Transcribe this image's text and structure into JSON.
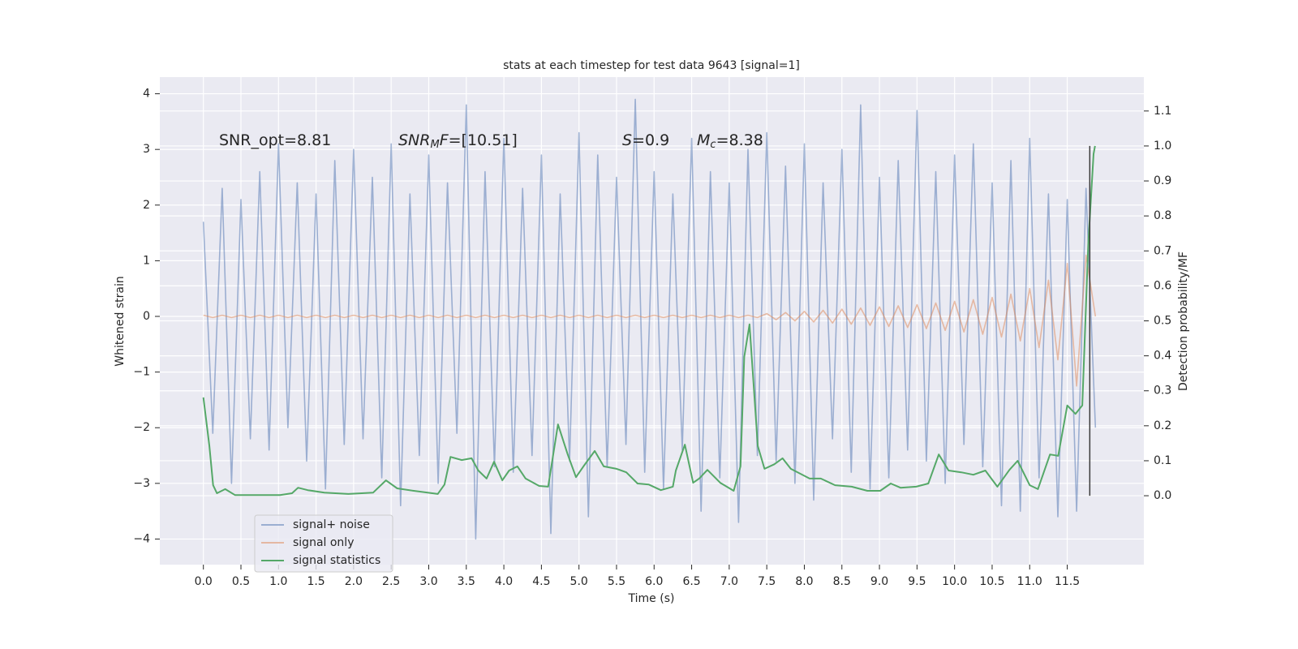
{
  "chart_data": {
    "type": "line",
    "title": "stats at each timestep for test data 9643 [signal=1]",
    "xlabel": "Time (s)",
    "ylabel": "Whitened strain",
    "y2label": "Detection probability/MF",
    "annotations": [
      [
        "SNR_opt=8.81"
      ],
      [
        "SNR",
        "M",
        "F",
        "=[10.51]"
      ],
      [
        "S",
        "=0.9"
      ],
      [
        "M",
        "c",
        "=8.38"
      ]
    ],
    "grid": true,
    "legend": "lower left",
    "xlim": [
      -0.58,
      12.52
    ],
    "xticks": [
      {
        "value": 0,
        "label": "0.0"
      },
      0.5,
      {
        "value": 1,
        "label": "1.0"
      },
      1.5,
      {
        "value": 2,
        "label": "2.0"
      },
      2.5,
      {
        "value": 3,
        "label": "3.0"
      },
      3.5,
      {
        "value": 4,
        "label": "4.0"
      },
      4.5,
      {
        "value": 5,
        "label": "5.0"
      },
      5.5,
      {
        "value": 6,
        "label": "6.0"
      },
      6.5,
      {
        "value": 7,
        "label": "7.0"
      },
      7.5,
      {
        "value": 8,
        "label": "8.0"
      },
      8.5,
      {
        "value": 9,
        "label": "9.0"
      },
      9.5,
      {
        "value": 10,
        "label": "10.0"
      },
      10.5,
      {
        "value": 11,
        "label": "11.0"
      },
      11.5
    ],
    "ylim": [
      -4.46,
      4.3
    ],
    "yticks": [
      {
        "value": -4,
        "label": "−4"
      },
      {
        "value": -3,
        "label": "−3"
      },
      {
        "value": -2,
        "label": "−2"
      },
      {
        "value": -1,
        "label": "−1"
      },
      0,
      1,
      2,
      3,
      4
    ],
    "y2lim": [
      -0.197,
      1.197
    ],
    "y2ticks": [
      {
        "value": 0,
        "label": "0.0"
      },
      0.1,
      0.2,
      0.3,
      0.4,
      0.5,
      0.6,
      0.7,
      0.8,
      0.9,
      {
        "value": 1,
        "label": "1.0"
      },
      1.1
    ],
    "x": [
      0,
      0.125,
      0.25,
      0.375,
      0.5,
      0.625,
      0.75,
      0.875,
      1,
      1.125,
      1.25,
      1.375,
      1.5,
      1.625,
      1.75,
      1.875,
      2,
      2.125,
      2.25,
      2.375,
      2.5,
      2.625,
      2.75,
      2.875,
      3,
      3.125,
      3.25,
      3.375,
      3.5,
      3.625,
      3.75,
      3.875,
      4,
      4.125,
      4.25,
      4.375,
      4.5,
      4.625,
      4.75,
      4.875,
      5,
      5.125,
      5.25,
      5.375,
      5.5,
      5.625,
      5.75,
      5.875,
      6,
      6.125,
      6.25,
      6.375,
      6.5,
      6.625,
      6.75,
      6.875,
      7,
      7.125,
      7.25,
      7.375,
      7.5,
      7.625,
      7.75,
      7.875,
      8,
      8.125,
      8.25,
      8.375,
      8.5,
      8.625,
      8.75,
      8.875,
      9,
      9.125,
      9.25,
      9.375,
      9.5,
      9.625,
      9.75,
      9.875,
      10,
      10.125,
      10.25,
      10.375,
      10.5,
      10.625,
      10.75,
      10.875,
      11,
      11.125,
      11.25,
      11.375,
      11.5,
      11.625,
      11.75,
      11.875
    ],
    "series": [
      {
        "name": "signal+ noise",
        "color": "#4c72b0",
        "alpha": 0.5,
        "values": [
          1.7,
          -2.1,
          2.3,
          -3.0,
          2.1,
          -2.2,
          2.6,
          -2.4,
          3.1,
          -2.0,
          2.4,
          -2.6,
          2.2,
          -3.1,
          2.8,
          -2.3,
          3.0,
          -2.2,
          2.5,
          -2.9,
          3.1,
          -3.4,
          2.2,
          -2.5,
          2.9,
          -3.0,
          2.4,
          -2.1,
          3.8,
          -4.0,
          2.6,
          -2.7,
          3.2,
          -2.8,
          2.3,
          -2.5,
          2.9,
          -3.9,
          2.2,
          -2.6,
          3.3,
          -3.6,
          2.9,
          -2.7,
          2.5,
          -2.3,
          3.9,
          -2.8,
          2.6,
          -3.1,
          2.2,
          -2.4,
          3.2,
          -3.5,
          2.6,
          -2.9,
          2.4,
          -3.7,
          3.0,
          -2.5,
          3.3,
          -2.6,
          2.7,
          -3.0,
          3.1,
          -3.3,
          2.4,
          -2.2,
          3.0,
          -2.8,
          3.8,
          -3.1,
          2.5,
          -2.9,
          2.8,
          -2.4,
          3.7,
          -2.6,
          2.6,
          -3.0,
          2.9,
          -2.3,
          3.1,
          -2.7,
          2.4,
          -3.4,
          2.8,
          -3.5,
          3.2,
          -2.9,
          2.2,
          -3.6,
          2.1,
          -3.5,
          2.3,
          -2.0
        ]
      },
      {
        "name": "signal only",
        "color": "#dd8452",
        "alpha": 0.5,
        "values": [
          0.02,
          -0.02,
          0.02,
          -0.02,
          0.02,
          -0.02,
          0.02,
          -0.02,
          0.02,
          -0.02,
          0.02,
          -0.02,
          0.02,
          -0.02,
          0.02,
          -0.02,
          0.02,
          -0.02,
          0.02,
          -0.02,
          0.02,
          -0.02,
          0.02,
          -0.02,
          0.02,
          -0.02,
          0.02,
          -0.02,
          0.02,
          -0.02,
          0.02,
          -0.02,
          0.02,
          -0.02,
          0.02,
          -0.02,
          0.02,
          -0.02,
          0.02,
          -0.02,
          0.02,
          -0.02,
          0.02,
          -0.02,
          0.02,
          -0.02,
          0.02,
          -0.02,
          0.02,
          -0.02,
          0.02,
          -0.02,
          0.02,
          -0.02,
          0.02,
          -0.02,
          0.02,
          -0.02,
          0.02,
          -0.02,
          0.05,
          -0.06,
          0.07,
          -0.08,
          0.09,
          -0.1,
          0.11,
          -0.12,
          0.13,
          -0.14,
          0.15,
          -0.16,
          0.17,
          -0.18,
          0.19,
          -0.2,
          0.21,
          -0.22,
          0.24,
          -0.25,
          0.27,
          -0.28,
          0.3,
          -0.32,
          0.34,
          -0.37,
          0.4,
          -0.44,
          0.5,
          -0.56,
          0.65,
          -0.78,
          0.95,
          -1.25,
          1.1,
          0
        ]
      },
      {
        "name": "signal statistics",
        "color": "#55a868",
        "axis": "y2",
        "x": [
          0,
          0.08,
          0.13,
          0.18,
          0.29,
          0.42,
          0.75,
          1.02,
          1.18,
          1.26,
          1.39,
          1.61,
          1.93,
          2.26,
          2.43,
          2.58,
          2.8,
          3.12,
          3.21,
          3.29,
          3.44,
          3.57,
          3.66,
          3.77,
          3.87,
          3.98,
          4.07,
          4.18,
          4.29,
          4.47,
          4.59,
          4.72,
          4.85,
          4.96,
          5.06,
          5.21,
          5.33,
          5.5,
          5.63,
          5.78,
          5.93,
          6.09,
          6.25,
          6.29,
          6.41,
          6.52,
          6.6,
          6.71,
          6.88,
          7.06,
          7.15,
          7.2,
          7.27,
          7.38,
          7.47,
          7.6,
          7.71,
          7.82,
          8.07,
          8.22,
          8.41,
          8.63,
          8.84,
          9.01,
          9.15,
          9.28,
          9.49,
          9.65,
          9.79,
          9.92,
          10.09,
          10.25,
          10.41,
          10.57,
          10.73,
          10.84,
          11.0,
          11.11,
          11.27,
          11.38,
          11.5,
          11.61,
          11.7,
          11.78,
          11.85,
          11.87
        ],
        "values": [
          0.281,
          0.142,
          0.03,
          0.007,
          0.019,
          0.002,
          0.002,
          0.002,
          0.007,
          0.023,
          0.016,
          0.009,
          0.005,
          0.009,
          0.044,
          0.021,
          0.014,
          0.005,
          0.032,
          0.111,
          0.102,
          0.107,
          0.072,
          0.049,
          0.097,
          0.044,
          0.072,
          0.084,
          0.049,
          0.028,
          0.026,
          0.204,
          0.118,
          0.053,
          0.084,
          0.128,
          0.084,
          0.077,
          0.067,
          0.035,
          0.032,
          0.016,
          0.026,
          0.072,
          0.146,
          0.037,
          0.049,
          0.074,
          0.037,
          0.014,
          0.084,
          0.397,
          0.49,
          0.142,
          0.077,
          0.09,
          0.107,
          0.077,
          0.049,
          0.049,
          0.03,
          0.026,
          0.014,
          0.014,
          0.035,
          0.023,
          0.026,
          0.035,
          0.118,
          0.072,
          0.067,
          0.06,
          0.072,
          0.026,
          0.074,
          0.1,
          0.03,
          0.019,
          0.118,
          0.114,
          0.258,
          0.234,
          0.258,
          0.722,
          0.977,
          1.0
        ]
      }
    ],
    "vline": {
      "x": 11.8,
      "ylim": [
        0,
        1
      ],
      "axis": "y2",
      "color": "#3a3a3a"
    }
  }
}
